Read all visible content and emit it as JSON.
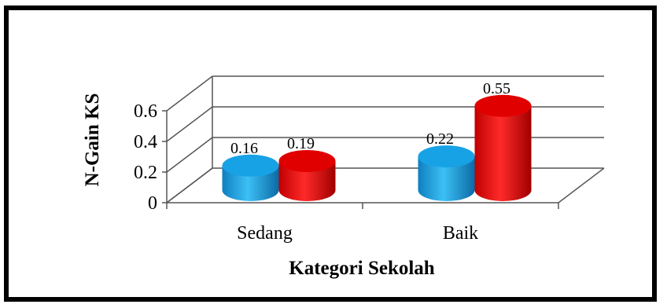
{
  "chart_data": {
    "type": "bar",
    "style": "3d-cylinder",
    "categories": [
      "Sedang",
      "Baik"
    ],
    "series": [
      {
        "values": [
          0.16,
          0.22
        ],
        "color": "#1aa4e8"
      },
      {
        "values": [
          0.19,
          0.55
        ],
        "color": "#e81010"
      }
    ],
    "data_labels": [
      [
        "0.16",
        "0.22"
      ],
      [
        "0.19",
        "0.55"
      ]
    ],
    "xlabel": "Kategori Sekolah",
    "ylabel": "N-Gain KS",
    "ylim": [
      0,
      0.6
    ],
    "yticks": [
      0,
      0.2,
      0.4,
      0.6
    ],
    "ytick_labels": [
      "0",
      "0.2",
      "0.4",
      "0.6"
    ],
    "grid": true,
    "legend": "none"
  }
}
